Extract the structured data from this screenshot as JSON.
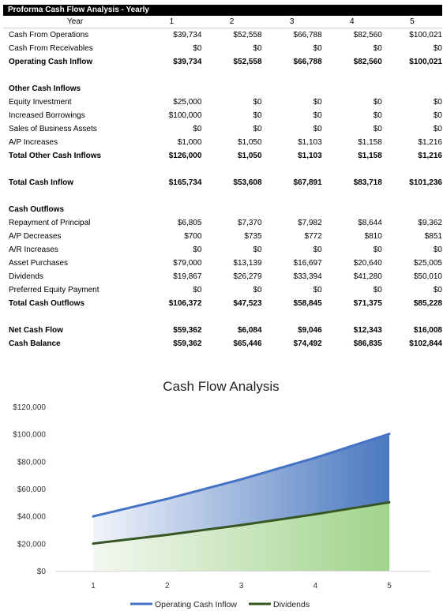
{
  "table": {
    "title": "Proforma Cash Flow Analysis - Yearly",
    "year_label": "Year",
    "years": [
      "1",
      "2",
      "3",
      "4",
      "5"
    ],
    "rows": [
      {
        "label": "Cash From Operations",
        "values": [
          "$39,734",
          "$52,558",
          "$66,788",
          "$82,560",
          "$100,021"
        ],
        "bold": false
      },
      {
        "label": "Cash From Receivables",
        "values": [
          "$0",
          "$0",
          "$0",
          "$0",
          "$0"
        ],
        "bold": false
      },
      {
        "label": "Operating Cash Inflow",
        "values": [
          "$39,734",
          "$52,558",
          "$66,788",
          "$82,560",
          "$100,021"
        ],
        "bold": true
      },
      {
        "label": "",
        "values": [
          "",
          "",
          "",
          "",
          ""
        ],
        "bold": false
      },
      {
        "label": "Other Cash Inflows",
        "values": [
          "",
          "",
          "",
          "",
          ""
        ],
        "bold": true
      },
      {
        "label": "Equity Investment",
        "values": [
          "$25,000",
          "$0",
          "$0",
          "$0",
          "$0"
        ],
        "bold": false
      },
      {
        "label": "Increased Borrowings",
        "values": [
          "$100,000",
          "$0",
          "$0",
          "$0",
          "$0"
        ],
        "bold": false
      },
      {
        "label": "Sales of Business Assets",
        "values": [
          "$0",
          "$0",
          "$0",
          "$0",
          "$0"
        ],
        "bold": false
      },
      {
        "label": "A/P Increases",
        "values": [
          "$1,000",
          "$1,050",
          "$1,103",
          "$1,158",
          "$1,216"
        ],
        "bold": false
      },
      {
        "label": "Total Other Cash Inflows",
        "values": [
          "$126,000",
          "$1,050",
          "$1,103",
          "$1,158",
          "$1,216"
        ],
        "bold": true
      },
      {
        "label": "",
        "values": [
          "",
          "",
          "",
          "",
          ""
        ],
        "bold": false
      },
      {
        "label": "Total Cash Inflow",
        "values": [
          "$165,734",
          "$53,608",
          "$67,891",
          "$83,718",
          "$101,236"
        ],
        "bold": true
      },
      {
        "label": "",
        "values": [
          "",
          "",
          "",
          "",
          ""
        ],
        "bold": false
      },
      {
        "label": "Cash Outflows",
        "values": [
          "",
          "",
          "",
          "",
          ""
        ],
        "bold": true
      },
      {
        "label": "Repayment of Principal",
        "values": [
          "$6,805",
          "$7,370",
          "$7,982",
          "$8,644",
          "$9,362"
        ],
        "bold": false
      },
      {
        "label": "A/P Decreases",
        "values": [
          "$700",
          "$735",
          "$772",
          "$810",
          "$851"
        ],
        "bold": false
      },
      {
        "label": "A/R Increases",
        "values": [
          "$0",
          "$0",
          "$0",
          "$0",
          "$0"
        ],
        "bold": false
      },
      {
        "label": "Asset Purchases",
        "values": [
          "$79,000",
          "$13,139",
          "$16,697",
          "$20,640",
          "$25,005"
        ],
        "bold": false
      },
      {
        "label": "Dividends",
        "values": [
          "$19,867",
          "$26,279",
          "$33,394",
          "$41,280",
          "$50,010"
        ],
        "bold": false
      },
      {
        "label": "Preferred Equity Payment",
        "values": [
          "$0",
          "$0",
          "$0",
          "$0",
          "$0"
        ],
        "bold": false
      },
      {
        "label": "Total Cash Outflows",
        "values": [
          "$106,372",
          "$47,523",
          "$58,845",
          "$71,375",
          "$85,228"
        ],
        "bold": true
      },
      {
        "label": "",
        "values": [
          "",
          "",
          "",
          "",
          ""
        ],
        "bold": false
      },
      {
        "label": "Net Cash Flow",
        "values": [
          "$59,362",
          "$6,084",
          "$9,046",
          "$12,343",
          "$16,008"
        ],
        "bold": true
      },
      {
        "label": "Cash Balance",
        "values": [
          "$59,362",
          "$65,446",
          "$74,492",
          "$86,835",
          "$102,844"
        ],
        "bold": true
      }
    ]
  },
  "chart_data": {
    "type": "area",
    "title": "Cash Flow Analysis",
    "x": [
      1,
      2,
      3,
      4,
      5
    ],
    "series": [
      {
        "name": "Operating Cash Inflow",
        "values": [
          39734,
          52558,
          66788,
          82560,
          100021
        ],
        "color": "#4472c4"
      },
      {
        "name": "Dividends",
        "values": [
          19867,
          26279,
          33394,
          41280,
          50010
        ],
        "color": "#375623"
      }
    ],
    "xlabel": "",
    "ylabel": "",
    "ylim": [
      0,
      120000
    ],
    "yticks": [
      0,
      20000,
      40000,
      60000,
      80000,
      100000,
      120000
    ],
    "ytick_labels": [
      "$0",
      "$20,000",
      "$40,000",
      "$60,000",
      "$80,000",
      "$100,000",
      "$120,000"
    ],
    "xtick_labels": [
      "1",
      "2",
      "3",
      "4",
      "5"
    ],
    "grid": false,
    "legend_position": "bottom"
  }
}
